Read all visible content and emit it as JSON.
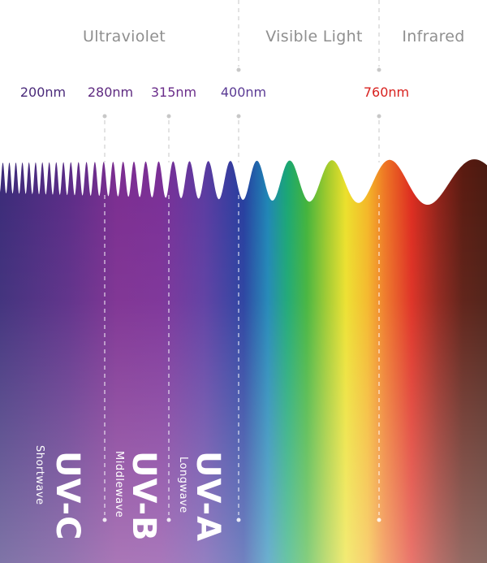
{
  "regions": {
    "ultraviolet": "Ultraviolet",
    "visible": "Visible Light",
    "infrared": "Infrared"
  },
  "wavelengths": {
    "w200": "200nm",
    "w280": "280nm",
    "w315": "315nm",
    "w400": "400nm",
    "w760": "760nm"
  },
  "bands": {
    "uvc": {
      "title": "UV-C",
      "subtitle": "Shortwave"
    },
    "uvb": {
      "title": "UV-B",
      "subtitle": "Middlewave"
    },
    "uva": {
      "title": "UV-A",
      "subtitle": "Longwave"
    }
  },
  "colors": {
    "label_gray": "#8f8f8f",
    "uv_purple": "#4a2a7a",
    "infrared_red": "#d8221f"
  }
}
